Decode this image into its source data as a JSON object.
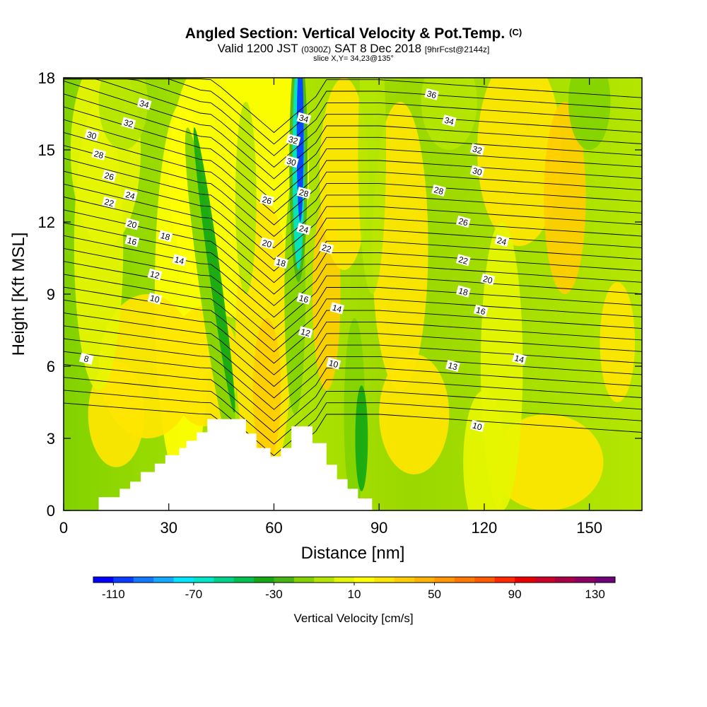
{
  "header": {
    "title": "Angled Section: Vertical Velocity & Pot.Temp.",
    "title_units": "(C)",
    "valid_prefix": "Valid 1200 JST",
    "valid_utc": "(0300Z)",
    "valid_date": "SAT 8 Dec 2018",
    "forecast_info": "[9hrFcst@2144z]",
    "slice": "slice X,Y= 34,23@135°"
  },
  "chart_data": {
    "type": "heatmap",
    "xlabel": "Distance [nm]",
    "ylabel": "Height [Kft MSL]",
    "xlim": [
      0,
      165
    ],
    "ylim": [
      0,
      18
    ],
    "x_ticks": [
      0,
      30,
      60,
      90,
      120,
      150
    ],
    "y_ticks": [
      0,
      3,
      6,
      9,
      12,
      15,
      18
    ],
    "colorbar": {
      "label": "Vertical Velocity [cm/s]",
      "tick_labels": [
        -110,
        -70,
        -30,
        10,
        50,
        90,
        130
      ],
      "range": [
        -120,
        140
      ],
      "step": 10,
      "colors": [
        "#0000ff",
        "#0a3cff",
        "#1478ff",
        "#14a8ff",
        "#00e6ff",
        "#00e6c8",
        "#00d28c",
        "#00c050",
        "#14a814",
        "#46b414",
        "#82d200",
        "#b4e600",
        "#e6f500",
        "#ffff00",
        "#ffe600",
        "#ffcd00",
        "#ffb400",
        "#ff9600",
        "#ff7800",
        "#ff5a00",
        "#ff2800",
        "#eb0000",
        "#cd0028",
        "#aa0046",
        "#8c0064",
        "#6e0078"
      ]
    },
    "vertical_velocity_field": {
      "description_units": "cm/s",
      "features": [
        {
          "kind": "updraft-core",
          "x_nm": 58,
          "height_kft": [
            1.5,
            12
          ],
          "max": 30
        },
        {
          "kind": "downdraft-core",
          "x_nm": 67,
          "height_kft": [
            11,
            18
          ],
          "min": -115
        },
        {
          "kind": "downdraft-band",
          "x_nm": 43,
          "height_kft": [
            5,
            15
          ],
          "min": -40
        },
        {
          "kind": "updraft-band",
          "x_nm": 75,
          "height_kft": [
            6,
            12
          ],
          "max": 30
        },
        {
          "kind": "downdraft-band",
          "x_nm": 85,
          "height_kft": [
            1,
            8
          ],
          "min": -40
        }
      ]
    },
    "potential_temperature_labels": [
      {
        "value": 8,
        "x": 6.5,
        "y": 6.3
      },
      {
        "value": 10,
        "x": 26,
        "y": 8.8
      },
      {
        "value": 12,
        "x": 26,
        "y": 9.8
      },
      {
        "value": 14,
        "x": 33,
        "y": 10.4
      },
      {
        "value": 16,
        "x": 19.5,
        "y": 11.2
      },
      {
        "value": 18,
        "x": 29,
        "y": 11.4
      },
      {
        "value": 20,
        "x": 19.5,
        "y": 11.9
      },
      {
        "value": 22,
        "x": 13,
        "y": 12.8
      },
      {
        "value": 24,
        "x": 19,
        "y": 13.1
      },
      {
        "value": 26,
        "x": 13,
        "y": 13.9
      },
      {
        "value": 28,
        "x": 10,
        "y": 14.8
      },
      {
        "value": 30,
        "x": 8,
        "y": 15.6
      },
      {
        "value": 32,
        "x": 18.5,
        "y": 16.1
      },
      {
        "value": 34,
        "x": 23,
        "y": 16.9
      },
      {
        "value": 26,
        "x": 58,
        "y": 12.9
      },
      {
        "value": 20,
        "x": 58,
        "y": 11.1
      },
      {
        "value": 18,
        "x": 62,
        "y": 10.3
      },
      {
        "value": 16,
        "x": 68.5,
        "y": 8.8
      },
      {
        "value": 12,
        "x": 69,
        "y": 7.4
      },
      {
        "value": 24,
        "x": 68.5,
        "y": 11.7
      },
      {
        "value": 28,
        "x": 68.5,
        "y": 13.2
      },
      {
        "value": 30,
        "x": 65,
        "y": 14.5
      },
      {
        "value": 32,
        "x": 65.5,
        "y": 15.4
      },
      {
        "value": 34,
        "x": 68.5,
        "y": 16.3
      },
      {
        "value": 22,
        "x": 75,
        "y": 10.9
      },
      {
        "value": 14,
        "x": 78,
        "y": 8.4
      },
      {
        "value": 10,
        "x": 77,
        "y": 6.1
      },
      {
        "value": 36,
        "x": 105,
        "y": 17.3
      },
      {
        "value": 34,
        "x": 110,
        "y": 16.2
      },
      {
        "value": 32,
        "x": 118,
        "y": 15.0
      },
      {
        "value": 30,
        "x": 118,
        "y": 14.1
      },
      {
        "value": 28,
        "x": 107,
        "y": 13.3
      },
      {
        "value": 26,
        "x": 114,
        "y": 12.0
      },
      {
        "value": 24,
        "x": 125,
        "y": 11.2
      },
      {
        "value": 22,
        "x": 114,
        "y": 10.4
      },
      {
        "value": 20,
        "x": 121,
        "y": 9.6
      },
      {
        "value": 18,
        "x": 114,
        "y": 9.1
      },
      {
        "value": 16,
        "x": 119,
        "y": 8.3
      },
      {
        "value": 14,
        "x": 130,
        "y": 6.3
      },
      {
        "value": 13,
        "x": 111,
        "y": 6.0
      },
      {
        "value": 10,
        "x": 118,
        "y": 3.5
      }
    ],
    "terrain_profile": [
      {
        "x": 0,
        "y": 0
      },
      {
        "x": 10,
        "y": 0
      },
      {
        "x": 10,
        "y": 0.55
      },
      {
        "x": 16,
        "y": 0.55
      },
      {
        "x": 16,
        "y": 0.9
      },
      {
        "x": 19,
        "y": 0.9
      },
      {
        "x": 19,
        "y": 1.2
      },
      {
        "x": 22,
        "y": 1.2
      },
      {
        "x": 22,
        "y": 1.6
      },
      {
        "x": 26,
        "y": 1.6
      },
      {
        "x": 26,
        "y": 1.95
      },
      {
        "x": 29,
        "y": 1.95
      },
      {
        "x": 29,
        "y": 2.3
      },
      {
        "x": 33,
        "y": 2.3
      },
      {
        "x": 33,
        "y": 2.6
      },
      {
        "x": 35,
        "y": 2.6
      },
      {
        "x": 35,
        "y": 2.9
      },
      {
        "x": 38,
        "y": 2.9
      },
      {
        "x": 38,
        "y": 3.25
      },
      {
        "x": 41,
        "y": 3.25
      },
      {
        "x": 41,
        "y": 3.8
      },
      {
        "x": 52,
        "y": 3.8
      },
      {
        "x": 52,
        "y": 3.2
      },
      {
        "x": 55,
        "y": 3.2
      },
      {
        "x": 55,
        "y": 2.6
      },
      {
        "x": 59,
        "y": 2.6
      },
      {
        "x": 59,
        "y": 2.25
      },
      {
        "x": 62,
        "y": 2.25
      },
      {
        "x": 62,
        "y": 2.6
      },
      {
        "x": 65,
        "y": 2.6
      },
      {
        "x": 65,
        "y": 3.5
      },
      {
        "x": 71,
        "y": 3.5
      },
      {
        "x": 71,
        "y": 2.8
      },
      {
        "x": 75,
        "y": 2.8
      },
      {
        "x": 75,
        "y": 1.9
      },
      {
        "x": 78,
        "y": 1.9
      },
      {
        "x": 78,
        "y": 1.3
      },
      {
        "x": 81,
        "y": 1.3
      },
      {
        "x": 81,
        "y": 0.9
      },
      {
        "x": 84,
        "y": 0.9
      },
      {
        "x": 84,
        "y": 0.5
      },
      {
        "x": 88,
        "y": 0.5
      },
      {
        "x": 88,
        "y": 0
      },
      {
        "x": 0,
        "y": 0
      }
    ]
  }
}
